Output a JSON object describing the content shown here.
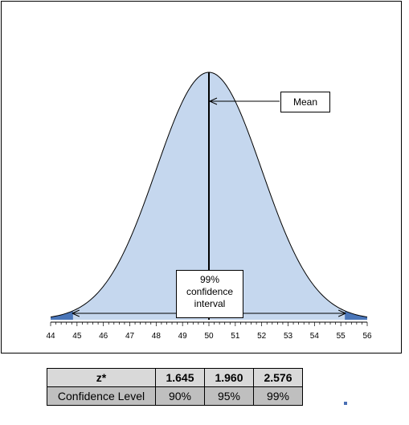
{
  "chart_data": {
    "type": "area",
    "distribution": "normal",
    "mean": 50,
    "sd": 2,
    "x_ticks": [
      "44",
      "45",
      "46",
      "47",
      "48",
      "49",
      "50",
      "51",
      "52",
      "53",
      "54",
      "55",
      "56"
    ],
    "xlim": [
      44,
      56
    ],
    "shaded_tails_beyond": [
      44.848,
      55.152
    ],
    "confidence_level": "99%",
    "annotations": {
      "mean": "Mean",
      "ci_line1": "99%",
      "ci_line2": "confidence",
      "ci_line3": "interval"
    },
    "colors": {
      "fill": "#c5d7ee",
      "tails": "#4a76b9",
      "line": "#000000"
    },
    "grid": false
  },
  "table": {
    "header": [
      "z*",
      "1.645",
      "1.960",
      "2.576"
    ],
    "row": [
      "Confidence Level",
      "90%",
      "95%",
      "99%"
    ]
  }
}
